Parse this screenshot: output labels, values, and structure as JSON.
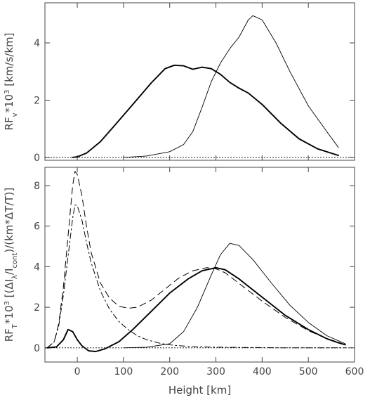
{
  "chart_data": [
    {
      "type": "line",
      "panel": "top",
      "xlim": [
        -70,
        600
      ],
      "ylim": [
        -0.1,
        5.4
      ],
      "x_ticks": [
        0,
        100,
        200,
        300,
        400,
        500,
        600
      ],
      "y_ticks": [
        0,
        2,
        4
      ],
      "y_tick_labels": [
        "0",
        "2",
        "4"
      ],
      "ylabel": "RF_v*10^3 [km/s/km]",
      "xlabel": "",
      "grid": false,
      "series": [
        {
          "style": "thick-solid",
          "color": "#000000",
          "x": [
            -10,
            0,
            20,
            50,
            80,
            120,
            160,
            190,
            210,
            230,
            250,
            270,
            290,
            310,
            330,
            350,
            370,
            400,
            440,
            480,
            520,
            565
          ],
          "y": [
            0,
            0.02,
            0.15,
            0.55,
            1.1,
            1.85,
            2.6,
            3.1,
            3.22,
            3.2,
            3.08,
            3.15,
            3.1,
            2.9,
            2.62,
            2.42,
            2.25,
            1.85,
            1.2,
            0.65,
            0.3,
            0.07
          ]
        },
        {
          "style": "thin-solid",
          "color": "#000000",
          "x": [
            100,
            150,
            200,
            230,
            250,
            270,
            290,
            310,
            330,
            350,
            370,
            380,
            400,
            430,
            460,
            500,
            540,
            565
          ],
          "y": [
            0,
            0.05,
            0.2,
            0.45,
            0.9,
            1.75,
            2.65,
            3.3,
            3.8,
            4.2,
            4.8,
            4.95,
            4.8,
            4.0,
            3.0,
            1.8,
            0.9,
            0.35
          ]
        }
      ]
    },
    {
      "type": "line",
      "panel": "bottom",
      "xlim": [
        -70,
        600
      ],
      "ylim": [
        -0.7,
        8.9
      ],
      "x_ticks": [
        0,
        100,
        200,
        300,
        400,
        500,
        600
      ],
      "x_tick_labels": [
        "0",
        "100",
        "200",
        "300",
        "400",
        "500",
        "600"
      ],
      "y_ticks": [
        0,
        2,
        4,
        6,
        8
      ],
      "y_tick_labels": [
        "0",
        "2",
        "4",
        "6",
        "8"
      ],
      "xlabel": "Height [km]",
      "ylabel": "RF_T*10^3 [(ΔI_λ/I_cont)/(km*ΔT/T)]",
      "grid": false,
      "series": [
        {
          "style": "thick-solid",
          "color": "#000000",
          "x": [
            -65,
            -45,
            -30,
            -20,
            -10,
            0,
            10,
            25,
            40,
            60,
            90,
            120,
            160,
            200,
            240,
            270,
            300,
            320,
            350,
            400,
            450,
            500,
            540,
            565,
            580
          ],
          "y": [
            0,
            0.05,
            0.4,
            0.9,
            0.8,
            0.4,
            0.1,
            -0.15,
            -0.18,
            -0.05,
            0.3,
            0.9,
            1.8,
            2.7,
            3.4,
            3.8,
            3.95,
            3.85,
            3.4,
            2.5,
            1.6,
            0.9,
            0.45,
            0.25,
            0.15
          ]
        },
        {
          "style": "thin-solid",
          "color": "#000000",
          "x": [
            100,
            150,
            200,
            230,
            260,
            290,
            310,
            330,
            350,
            380,
            420,
            460,
            500,
            540,
            565,
            580
          ],
          "y": [
            0,
            0.03,
            0.2,
            0.8,
            2.0,
            3.6,
            4.6,
            5.15,
            5.05,
            4.35,
            3.2,
            2.1,
            1.25,
            0.6,
            0.35,
            0.2
          ]
        },
        {
          "style": "dashed",
          "color": "#000000",
          "x": [
            -65,
            -50,
            -40,
            -30,
            -20,
            -10,
            -5,
            0,
            10,
            20,
            30,
            50,
            70,
            90,
            110,
            130,
            160,
            190,
            220,
            250,
            280,
            300,
            320,
            360,
            400,
            450,
            500,
            540,
            565,
            580
          ],
          "y": [
            0,
            0.3,
            1.2,
            3.0,
            5.5,
            8.0,
            8.7,
            8.55,
            7.5,
            6.0,
            4.7,
            3.2,
            2.45,
            2.05,
            1.95,
            2.0,
            2.35,
            2.9,
            3.45,
            3.8,
            3.95,
            3.9,
            3.7,
            3.0,
            2.3,
            1.5,
            0.85,
            0.45,
            0.28,
            0.15
          ]
        },
        {
          "style": "dash-dot",
          "color": "#000000",
          "x": [
            -65,
            -50,
            -40,
            -30,
            -20,
            -10,
            -5,
            0,
            10,
            20,
            30,
            50,
            70,
            90,
            110,
            130,
            150,
            180,
            210,
            250,
            300,
            350,
            400,
            450,
            500,
            550,
            580
          ],
          "y": [
            0,
            0.3,
            1.1,
            2.6,
            4.5,
            6.4,
            7.05,
            7.0,
            6.3,
            5.2,
            4.2,
            2.8,
            1.9,
            1.3,
            0.9,
            0.6,
            0.4,
            0.22,
            0.12,
            0.06,
            0.03,
            0.02,
            0.01,
            0.0,
            0.0,
            0.0,
            0.0
          ]
        }
      ]
    }
  ]
}
